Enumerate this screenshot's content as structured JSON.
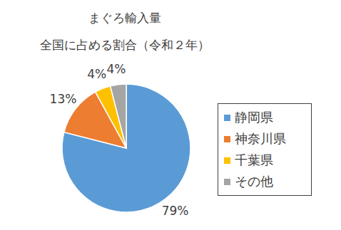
{
  "chart_data": {
    "type": "pie",
    "title": "まぐろ輸入量",
    "subtitle": "全国に占める割合（令和２年）",
    "categories": [
      "静岡県",
      "神奈川県",
      "千葉県",
      "その他"
    ],
    "values": [
      79,
      13,
      4,
      4
    ],
    "value_labels": [
      "79%",
      "13%",
      "4%",
      "4%"
    ],
    "colors": [
      "#5b9bd5",
      "#ed7d31",
      "#ffc000",
      "#a5a5a5"
    ],
    "data_labels": true,
    "legend": "right"
  }
}
